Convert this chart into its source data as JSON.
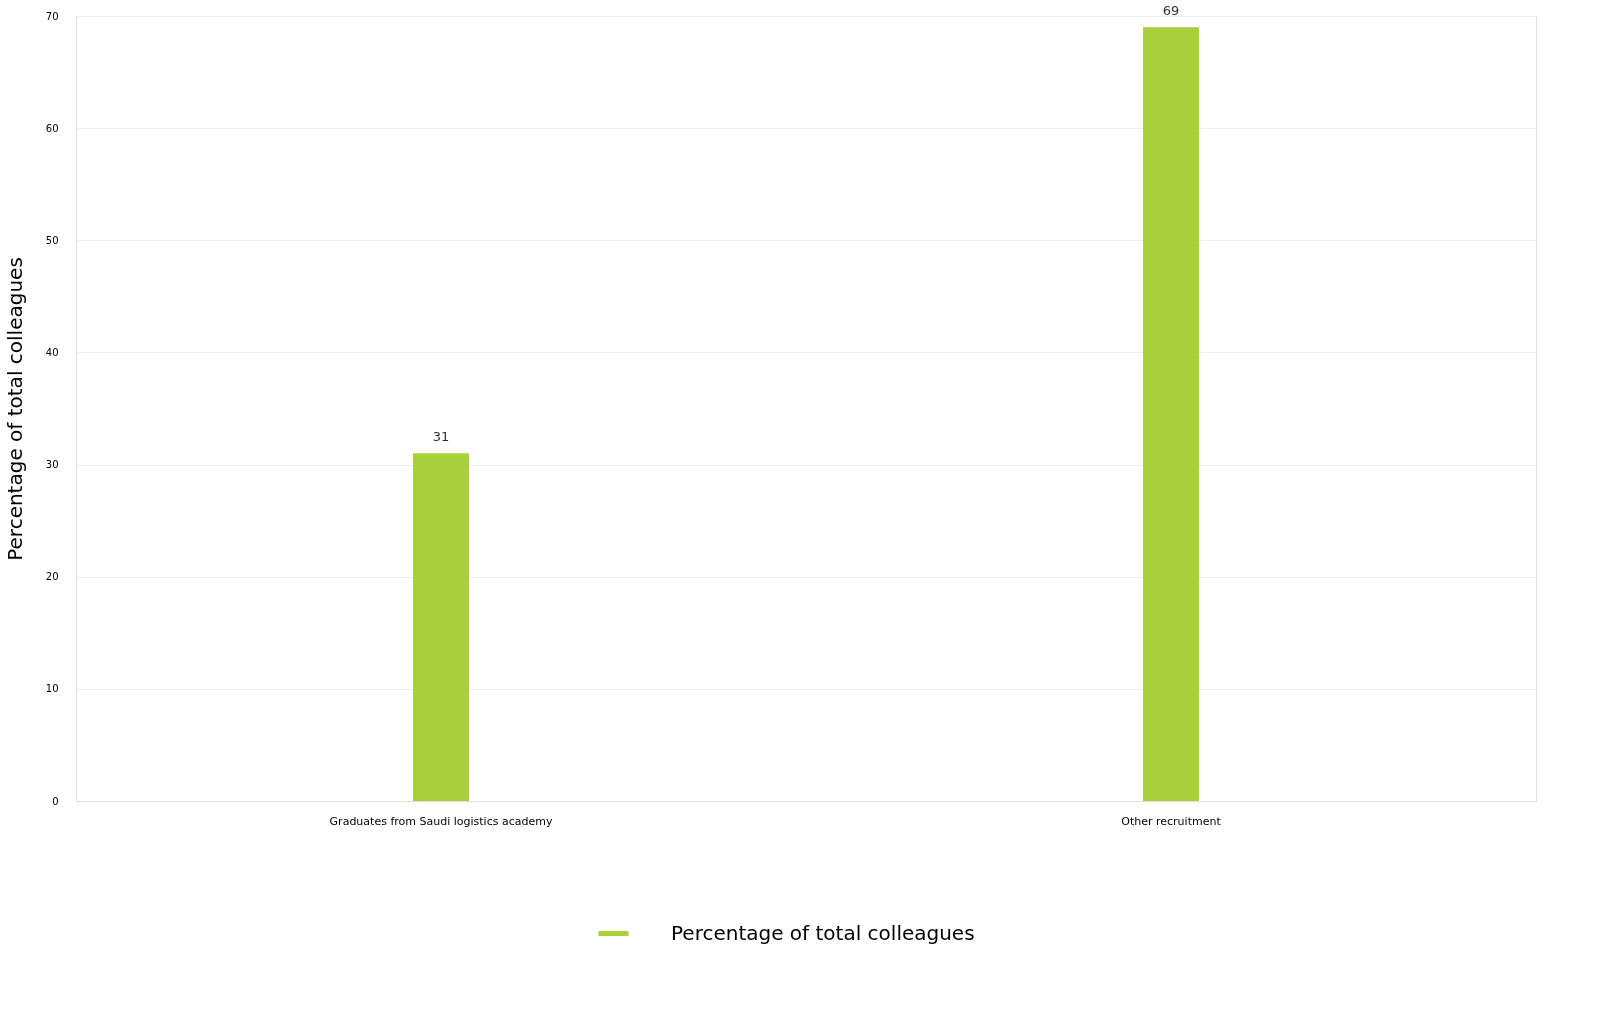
{
  "chart_data": {
    "type": "bar",
    "ylabel": "Percentage of total colleagues",
    "categories": [
      "Graduates from Saudi logistics academy",
      "Other recruitment"
    ],
    "series": [
      {
        "name": "Percentage of total colleagues",
        "color": "#a8cf3c",
        "values": [
          31,
          69
        ]
      }
    ],
    "ylim": [
      0,
      70
    ],
    "yticks": [
      0,
      10,
      20,
      30,
      40,
      50,
      60,
      70
    ],
    "grid": "y",
    "legend": "bottom",
    "data_labels": true
  }
}
